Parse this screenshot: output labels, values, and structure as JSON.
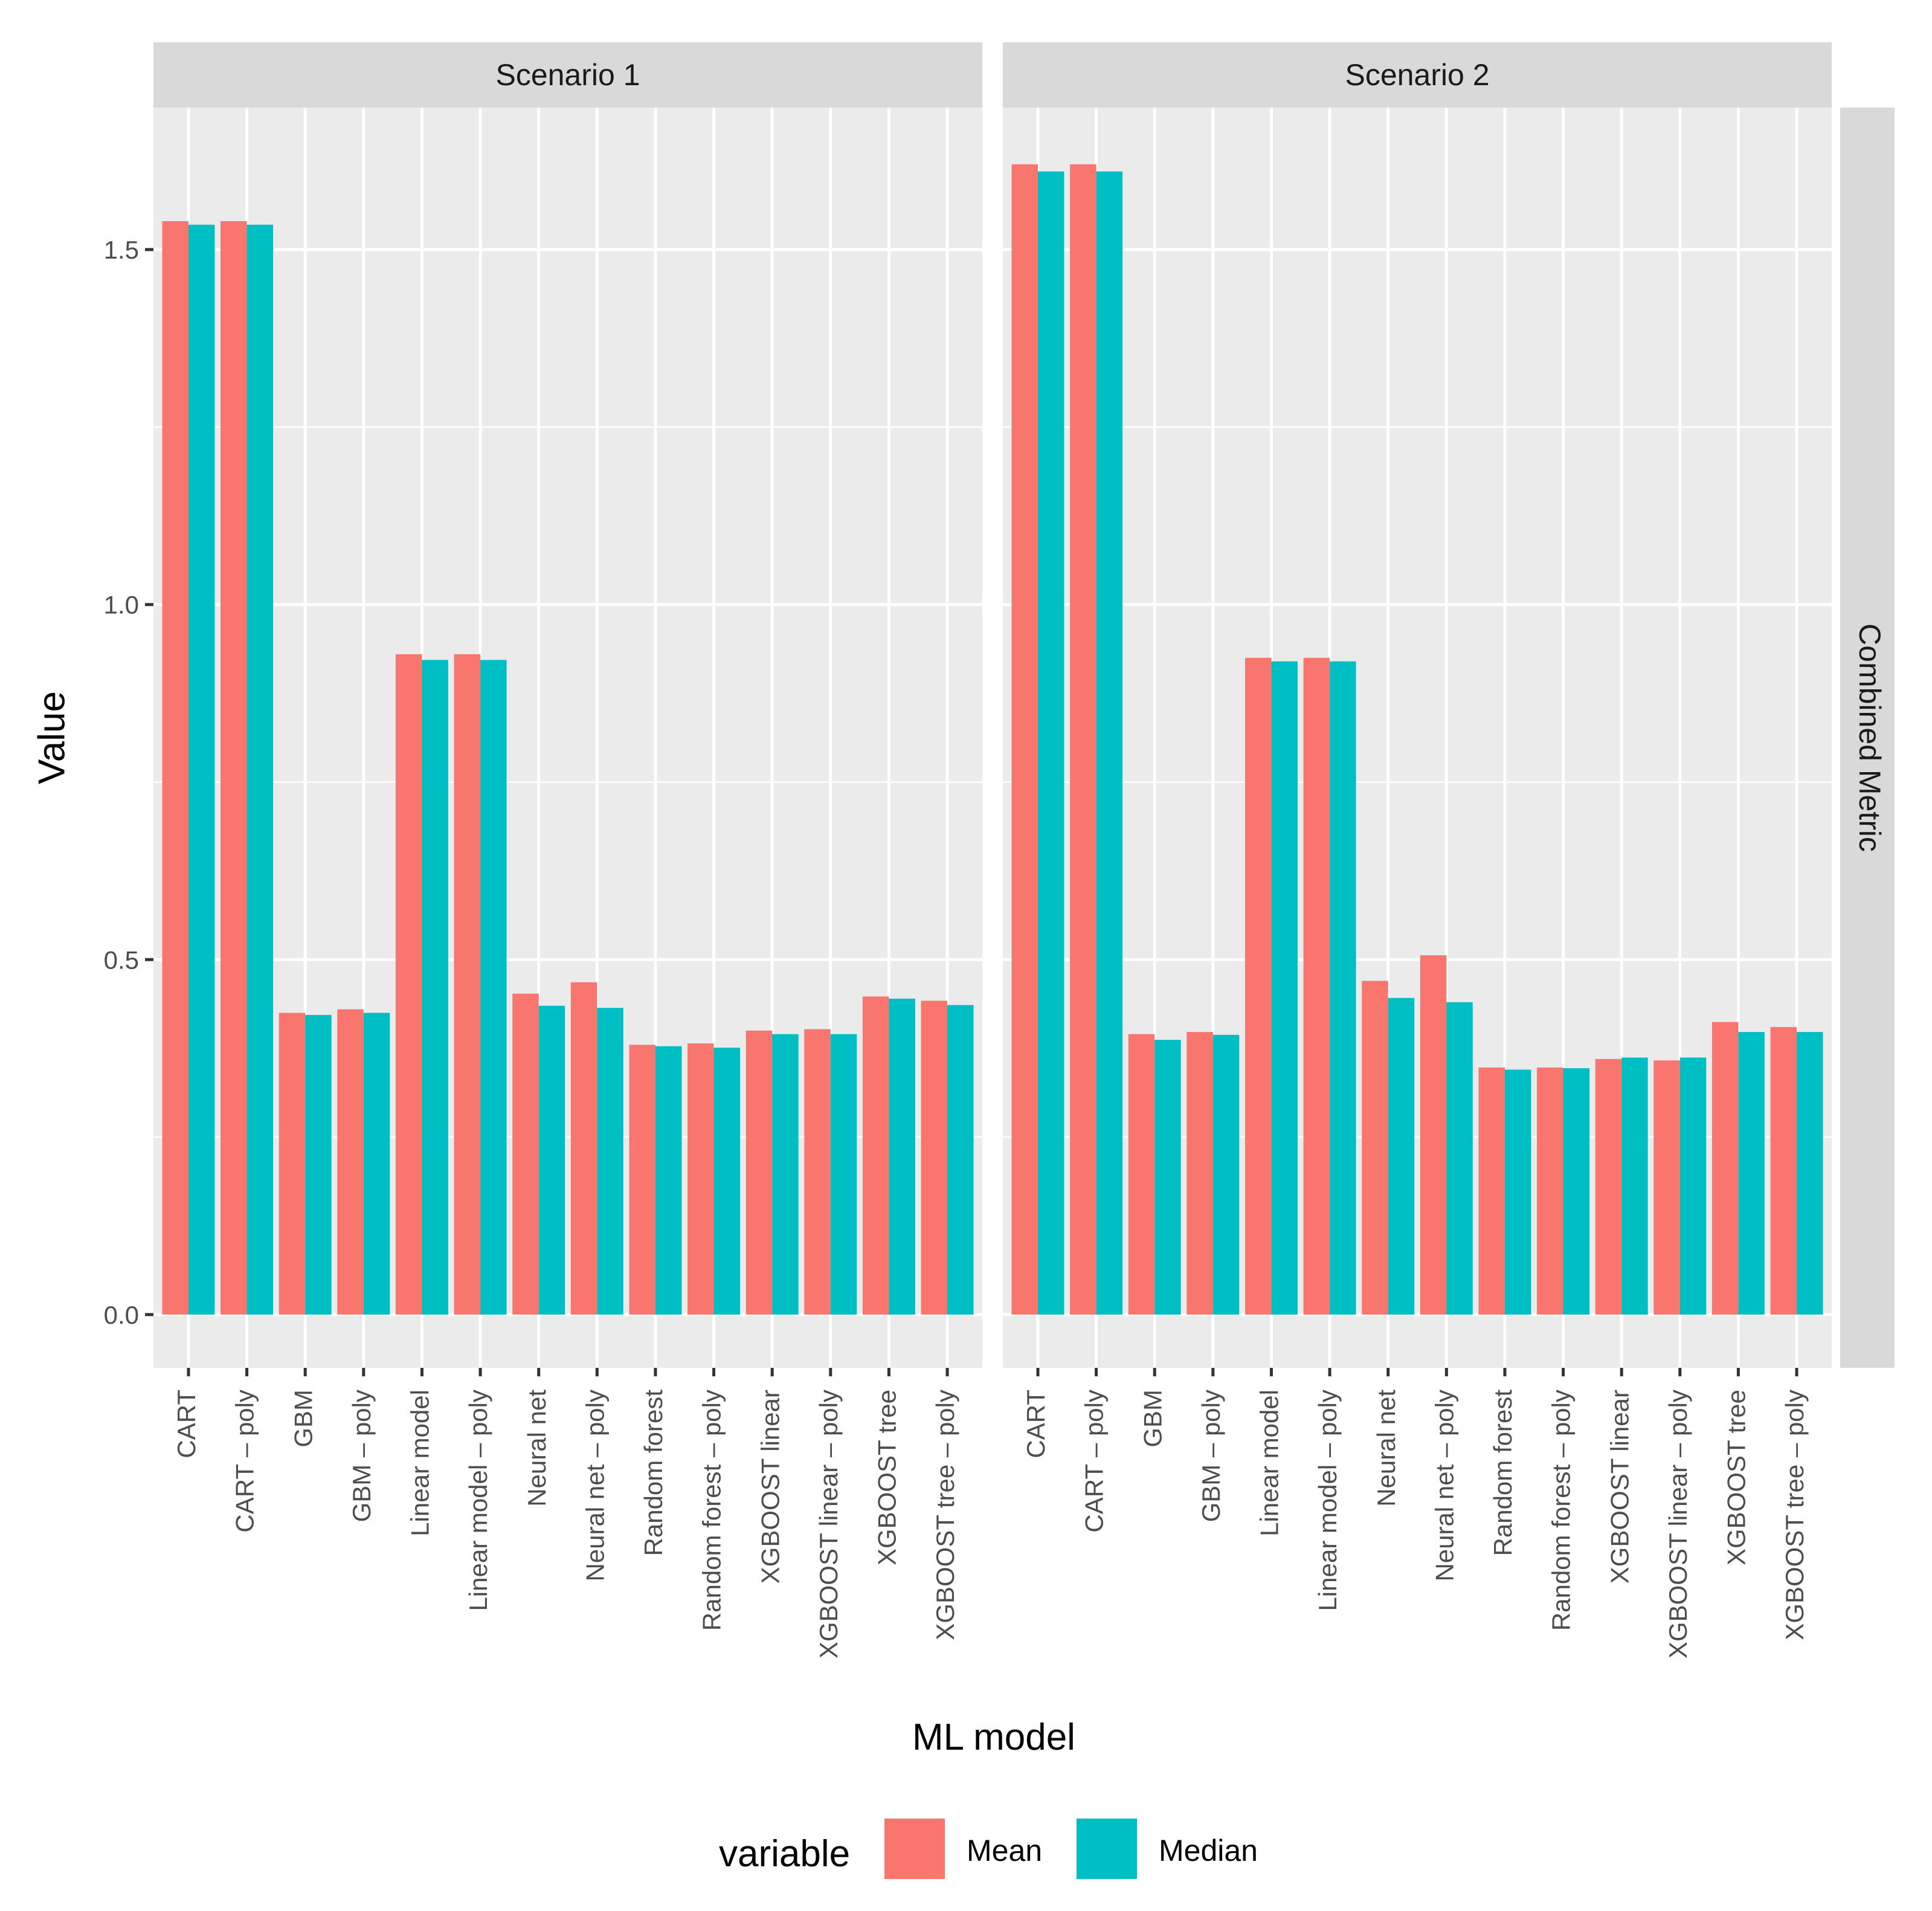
{
  "chart_data": {
    "type": "bar",
    "title": "",
    "xlabel": "ML model",
    "ylabel": "Value",
    "ylim": [
      -0.075,
      1.7
    ],
    "yticks": [
      0.0,
      0.5,
      1.0,
      1.5
    ],
    "ytick_labels": [
      "0.0",
      "0.5",
      "1.0",
      "1.5"
    ],
    "row_strip": "Combined Metric",
    "categories": [
      "CART",
      "CART – poly",
      "GBM",
      "GBM – poly",
      "Linear model",
      "Linear model – poly",
      "Neural net",
      "Neural net – poly",
      "Random forest",
      "Random forest – poly",
      "XGBOOST linear",
      "XGBOOST linear – poly",
      "XGBOOST tree",
      "XGBOOST tree – poly"
    ],
    "legend": {
      "title": "variable",
      "position": "bottom",
      "entries": [
        {
          "name": "Mean",
          "color": "#F8766D"
        },
        {
          "name": "Median",
          "color": "#00BFC4"
        }
      ]
    },
    "panels": [
      {
        "strip": "Scenario 1",
        "series": [
          {
            "name": "Mean",
            "values": [
              1.54,
              1.54,
              0.425,
              0.43,
              0.93,
              0.93,
              0.452,
              0.468,
              0.38,
              0.382,
              0.4,
              0.402,
              0.448,
              0.442
            ]
          },
          {
            "name": "Median",
            "values": [
              1.535,
              1.535,
              0.422,
              0.425,
              0.922,
              0.922,
              0.435,
              0.432,
              0.378,
              0.376,
              0.395,
              0.395,
              0.445,
              0.436
            ]
          }
        ]
      },
      {
        "strip": "Scenario 2",
        "series": [
          {
            "name": "Mean",
            "values": [
              1.62,
              1.62,
              0.395,
              0.398,
              0.925,
              0.925,
              0.47,
              0.506,
              0.348,
              0.348,
              0.36,
              0.358,
              0.412,
              0.405
            ]
          },
          {
            "name": "Median",
            "values": [
              1.61,
              1.61,
              0.387,
              0.394,
              0.92,
              0.92,
              0.446,
              0.44,
              0.345,
              0.347,
              0.362,
              0.362,
              0.398,
              0.398
            ]
          }
        ]
      }
    ]
  }
}
